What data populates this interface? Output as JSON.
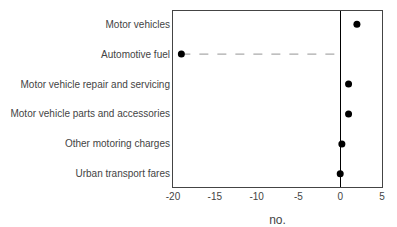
{
  "chart_data": {
    "type": "scatter",
    "categories": [
      "Motor vehicles",
      "Automotive fuel",
      "Motor vehicle repair and servicing",
      "Motor vehicle parts and accessories",
      "Other motoring charges",
      "Urban transport fares"
    ],
    "series": [
      {
        "type": "scatter",
        "marker": "circle",
        "color": "#000000",
        "values": [
          2.0,
          -19.0,
          1.0,
          1.0,
          0.2,
          0.0
        ]
      },
      {
        "type": "stem",
        "line_style": "dashed",
        "color": "#aaaaaa",
        "values": [
          null,
          -19.0,
          null,
          null,
          null,
          null
        ]
      }
    ],
    "xlabel": "no.",
    "xlim": [
      -20,
      5
    ],
    "xticks": [
      -20,
      -15,
      -10,
      -5,
      0,
      5
    ],
    "grid": false
  }
}
